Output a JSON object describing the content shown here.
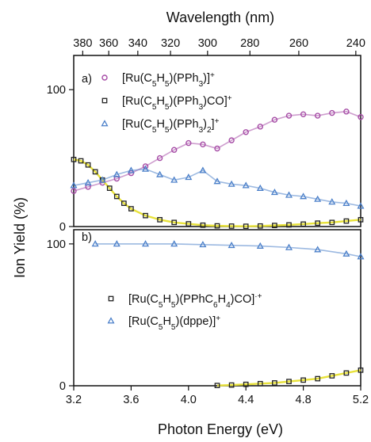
{
  "chart_data": {
    "type": "scatter",
    "top_axis": {
      "label": "Wavelength (nm)",
      "ticks": [
        380,
        360,
        340,
        320,
        300,
        280,
        260,
        240
      ],
      "tick_labels": [
        "380",
        "360",
        "340",
        "320",
        "300",
        "280",
        "260",
        "240"
      ]
    },
    "x_axis": {
      "label": "Photon Energy (eV)",
      "range": [
        3.2,
        5.2
      ],
      "ticks": [
        3.2,
        3.6,
        4.0,
        4.4,
        4.8,
        5.2
      ],
      "tick_labels": [
        "3.2",
        "3.6",
        "4.0",
        "4.4",
        "4.8",
        "5.2"
      ]
    },
    "y_label": "Ion Yield (%)",
    "panels": [
      {
        "label": "a)",
        "ylim": [
          0,
          125
        ],
        "yticks": [
          0,
          100
        ],
        "ytick_labels": [
          "0",
          "100"
        ],
        "series": [
          {
            "name": "[Ru(C5H5)(PPh3)]+",
            "legend_main": "[Ru(C",
            "legend_parts": [
              "5",
              "H",
              "5",
              ")(PPh",
              "3",
              ")]",
              "+"
            ],
            "marker": "circle",
            "color": "#a64ca6",
            "x": [
              3.2,
              3.3,
              3.4,
              3.5,
              3.6,
              3.7,
              3.8,
              3.9,
              4.0,
              4.1,
              4.2,
              4.3,
              4.4,
              4.5,
              4.6,
              4.7,
              4.8,
              4.9,
              5.0,
              5.1,
              5.2
            ],
            "y": [
              26,
              29,
              32,
              35,
              39,
              44,
              50,
              56,
              61,
              60,
              57,
              63,
              69,
              73,
              78,
              81,
              82,
              81,
              83,
              84,
              80
            ]
          },
          {
            "name": "[Ru(C5H5)(PPh3)CO]+",
            "marker": "square",
            "color": "#222222",
            "x": [
              3.2,
              3.25,
              3.3,
              3.35,
              3.4,
              3.45,
              3.5,
              3.55,
              3.6,
              3.7,
              3.8,
              3.9,
              4.0,
              4.1,
              4.2,
              4.3,
              4.4,
              4.5,
              4.6,
              4.7,
              4.8,
              4.9,
              5.0,
              5.1,
              5.2
            ],
            "y": [
              49,
              48,
              45,
              40,
              34,
              28,
              22,
              17,
              13,
              8,
              5,
              3,
              2,
              1,
              0.5,
              0.3,
              0.2,
              0.4,
              0.8,
              1.2,
              1.8,
              2.5,
              3,
              4,
              5
            ]
          },
          {
            "name": "[Ru(C5H5)(PPh3)2]+",
            "marker": "triangle",
            "color": "#4a7fc9",
            "x": [
              3.2,
              3.3,
              3.4,
              3.5,
              3.6,
              3.7,
              3.8,
              3.9,
              4.0,
              4.1,
              4.2,
              4.3,
              4.4,
              4.5,
              4.6,
              4.7,
              4.8,
              4.9,
              5.0,
              5.1,
              5.2
            ],
            "y": [
              30,
              32,
              34,
              38,
              41,
              42,
              38,
              34,
              36,
              41,
              33,
              31,
              30,
              28,
              25,
              23,
              22,
              20,
              18,
              17,
              15
            ]
          }
        ]
      },
      {
        "label": "b)",
        "ylim": [
          0,
          110
        ],
        "yticks": [
          0,
          100
        ],
        "ytick_labels": [
          "0",
          "100"
        ],
        "series": [
          {
            "name": "[Ru(C5H5)(PPhC6H4)CO]·+",
            "marker": "square",
            "color": "#222222",
            "x": [
              4.2,
              4.3,
              4.4,
              4.5,
              4.6,
              4.7,
              4.8,
              4.9,
              5.0,
              5.1,
              5.2
            ],
            "y": [
              0.2,
              0.5,
              1,
              1.5,
              2,
              3,
              4,
              5,
              7,
              9,
              11
            ]
          },
          {
            "name": "[Ru(C5H5)(dppe)]+",
            "marker": "triangle",
            "color": "#4a7fc9",
            "x": [
              3.35,
              3.5,
              3.7,
              3.9,
              4.1,
              4.3,
              4.5,
              4.7,
              4.9,
              5.1,
              5.2
            ],
            "y": [
              100,
              100,
              100,
              100,
              99.5,
              99,
              98.5,
              97.5,
              96,
              93,
              91
            ]
          }
        ]
      }
    ],
    "grid": false,
    "legend_placement": "inside top-left of each panel"
  }
}
